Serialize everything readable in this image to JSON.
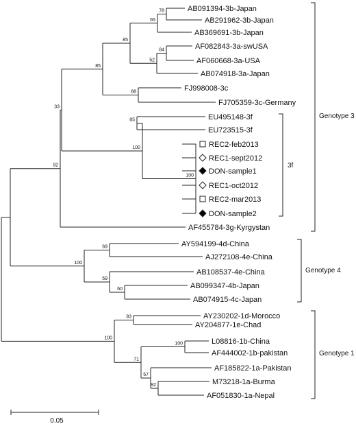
{
  "leaves": [
    {
      "id": "AB091394",
      "label": "AB091394-3b-Japan"
    },
    {
      "id": "AB291962",
      "label": "AB291962-3b-Japan"
    },
    {
      "id": "AB369691",
      "label": "AB369691-3b-Japan"
    },
    {
      "id": "AF082843",
      "label": "AF082843-3a-swUSA"
    },
    {
      "id": "AF060668",
      "label": "AF060668-3a-USA"
    },
    {
      "id": "AB074918",
      "label": "AB074918-3a-Japan"
    },
    {
      "id": "FJ998008",
      "label": "FJ998008-3c"
    },
    {
      "id": "FJ705359",
      "label": "FJ705359-3c-Germany"
    },
    {
      "id": "EU495148",
      "label": "EU495148-3f"
    },
    {
      "id": "EU723515",
      "label": "EU723515-3f"
    },
    {
      "id": "REC2feb",
      "label": "REC2-feb2013",
      "marker": "open-square"
    },
    {
      "id": "REC1sept",
      "label": "REC1-sept2012",
      "marker": "open-diamond"
    },
    {
      "id": "DON1",
      "label": "DON-sample1",
      "marker": "filled-diamond"
    },
    {
      "id": "REC1oct",
      "label": "REC1-oct2012",
      "marker": "open-diamond"
    },
    {
      "id": "REC2mar",
      "label": "REC2-mar2013",
      "marker": "open-square"
    },
    {
      "id": "DON2",
      "label": "DON-sample2",
      "marker": "filled-diamond"
    },
    {
      "id": "AF455784",
      "label": "AF455784-3g-Kyrgystan"
    },
    {
      "id": "AY594199",
      "label": "AY594199-4d-China"
    },
    {
      "id": "AJ272108",
      "label": "AJ272108-4e-China"
    },
    {
      "id": "AB108537",
      "label": "AB108537-4e-China"
    },
    {
      "id": "AB099347",
      "label": "AB099347-4b-Japan"
    },
    {
      "id": "AB074915",
      "label": "AB074915-4c-Japan"
    },
    {
      "id": "AY230202",
      "label": "AY230202-1d-Morocco"
    },
    {
      "id": "AY204877",
      "label": "AY204877-1e-Chad"
    },
    {
      "id": "L08816",
      "label": "L08816-1b-China"
    },
    {
      "id": "AF444002",
      "label": "AF444002-1b-pakistan"
    },
    {
      "id": "AF185822",
      "label": "AF185822-1a-Pakistan"
    },
    {
      "id": "M73218",
      "label": "M73218-1a-Burma"
    },
    {
      "id": "AF051830",
      "label": "AF051830-1a-Nepal"
    }
  ],
  "bootstrap": [
    {
      "node": "3b-pair",
      "value": "78"
    },
    {
      "node": "3b-clade",
      "value": "65"
    },
    {
      "node": "3b3a-clade",
      "value": "85"
    },
    {
      "node": "3a-pair",
      "value": "84"
    },
    {
      "node": "3a-clade",
      "value": "52"
    },
    {
      "node": "3abc-clade",
      "value": "85"
    },
    {
      "node": "3c-clade",
      "value": "88"
    },
    {
      "node": "3-core",
      "value": "33"
    },
    {
      "node": "3f-pair",
      "value": "85"
    },
    {
      "node": "3f-clade",
      "value": "100"
    },
    {
      "node": "samples",
      "value": "100"
    },
    {
      "node": "genotype-3",
      "value": "92"
    },
    {
      "node": "4d4e-pair",
      "value": "69"
    },
    {
      "node": "genotype-4",
      "value": "100"
    },
    {
      "node": "4e-4b4c",
      "value": "59"
    },
    {
      "node": "4b4c-pair",
      "value": "60"
    },
    {
      "node": "1d1e-pair",
      "value": "93"
    },
    {
      "node": "genotype-1",
      "value": "100"
    },
    {
      "node": "1b-pair",
      "value": "100"
    },
    {
      "node": "1b1a",
      "value": "71"
    },
    {
      "node": "1a-clade",
      "value": "57"
    },
    {
      "node": "1a-pair",
      "value": "92"
    }
  ],
  "groups": [
    {
      "id": "genotype-3",
      "label": "Genotype 3"
    },
    {
      "id": "3f",
      "label": "3f"
    },
    {
      "id": "genotype-4",
      "label": "Genotype 4"
    },
    {
      "id": "genotype-1",
      "label": "Genotype 1"
    }
  ],
  "scale_bar": {
    "value": 0.05,
    "label": "0.05"
  }
}
